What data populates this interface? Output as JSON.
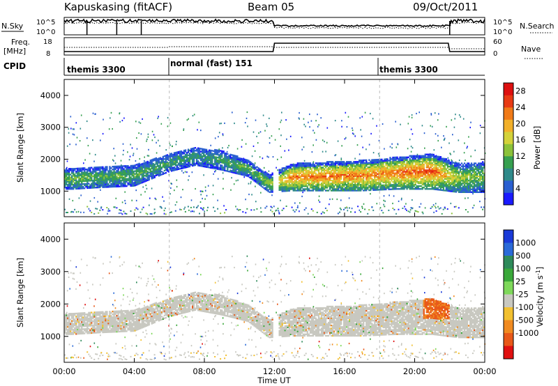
{
  "header": {
    "station": "Kapuskasing (fitACF)",
    "beam": "Beam 05",
    "date": "09/Oct/2011"
  },
  "top_panels": {
    "nsky_label": "N.Sky",
    "nsearch_label": "N.Search",
    "freq_label": "Freq.",
    "freq_unit": "[MHz]",
    "nave_label": "Nave",
    "cpid_label": "CPID",
    "noise_ticks_left": [
      "10^5",
      "10^0"
    ],
    "noise_ticks_right": [
      "10^5",
      "10^0"
    ],
    "freq_ticks_left": [
      "18",
      "8"
    ],
    "freq_ticks_right": [
      "60",
      "0"
    ],
    "cpid_segments": [
      {
        "label": "themis 3300",
        "start_hour": 0
      },
      {
        "label": "normal (fast) 151",
        "start_hour": 6
      },
      {
        "label": "themis 3300",
        "start_hour": 18
      }
    ]
  },
  "chart_data": [
    {
      "type": "heatmap",
      "panel": "power",
      "ylabel": "Slant Range [km]",
      "xlabel": "",
      "ylim": [
        200,
        4500
      ],
      "xlim_hours": [
        0,
        24
      ],
      "y_ticks": [
        1000,
        2000,
        3000,
        4000
      ],
      "colorbar": {
        "label": "Power [dB]",
        "ticks": [
          4,
          8,
          12,
          16,
          20,
          24,
          28
        ],
        "colors": [
          "#1a1aff",
          "#2a5fd0",
          "#2f8a8a",
          "#37a050",
          "#8cc23a",
          "#d4d23a",
          "#f2b02a",
          "#f07a18",
          "#e83a14",
          "#dd1010"
        ]
      },
      "echo_band": [
        {
          "hour": 0.5,
          "low": 1050,
          "high": 1700,
          "power": 10
        },
        {
          "hour": 2.0,
          "low": 1100,
          "high": 1750,
          "power": 9
        },
        {
          "hour": 4.0,
          "low": 1150,
          "high": 1800,
          "power": 9
        },
        {
          "hour": 6.0,
          "low": 1600,
          "high": 2150,
          "power": 8
        },
        {
          "hour": 7.5,
          "low": 1800,
          "high": 2350,
          "power": 7
        },
        {
          "hour": 9.0,
          "low": 1650,
          "high": 2250,
          "power": 8
        },
        {
          "hour": 10.5,
          "low": 1450,
          "high": 1950,
          "power": 10
        },
        {
          "hour": 11.7,
          "low": 950,
          "high": 1500,
          "power": 11
        },
        {
          "hour": 13.0,
          "low": 1000,
          "high": 1850,
          "power": 18
        },
        {
          "hour": 15.0,
          "low": 1000,
          "high": 1900,
          "power": 19
        },
        {
          "hour": 17.0,
          "low": 1000,
          "high": 1950,
          "power": 18
        },
        {
          "hour": 19.0,
          "low": 1050,
          "high": 2050,
          "power": 19
        },
        {
          "hour": 21.0,
          "low": 1050,
          "high": 2150,
          "power": 20
        },
        {
          "hour": 22.5,
          "low": 950,
          "high": 1850,
          "power": 12
        },
        {
          "hour": 24.0,
          "low": 950,
          "high": 1900,
          "power": 10
        }
      ]
    },
    {
      "type": "heatmap",
      "panel": "velocity",
      "ylabel": "Slant Range [km]",
      "xlabel": "Time UT",
      "ylim": [
        200,
        4500
      ],
      "xlim_hours": [
        0,
        24
      ],
      "y_ticks": [
        1000,
        2000,
        3000,
        4000
      ],
      "x_ticks": [
        "00:00",
        "04:00",
        "08:00",
        "12:00",
        "16:00",
        "20:00",
        "00:00"
      ],
      "colorbar": {
        "label": "Velocity [m s",
        "label_sup": "-1",
        "label_end": "]",
        "ticks": [
          "1000",
          "500",
          "100",
          "25",
          "-25",
          "-100",
          "-500",
          "-1000"
        ],
        "colors": [
          "#1a3ad8",
          "#2a6ad8",
          "#2e8a5a",
          "#3aa83a",
          "#7ed85a",
          "#c8c8c0",
          "#f2c030",
          "#f08a20",
          "#e85818",
          "#e01010"
        ]
      }
    }
  ]
}
